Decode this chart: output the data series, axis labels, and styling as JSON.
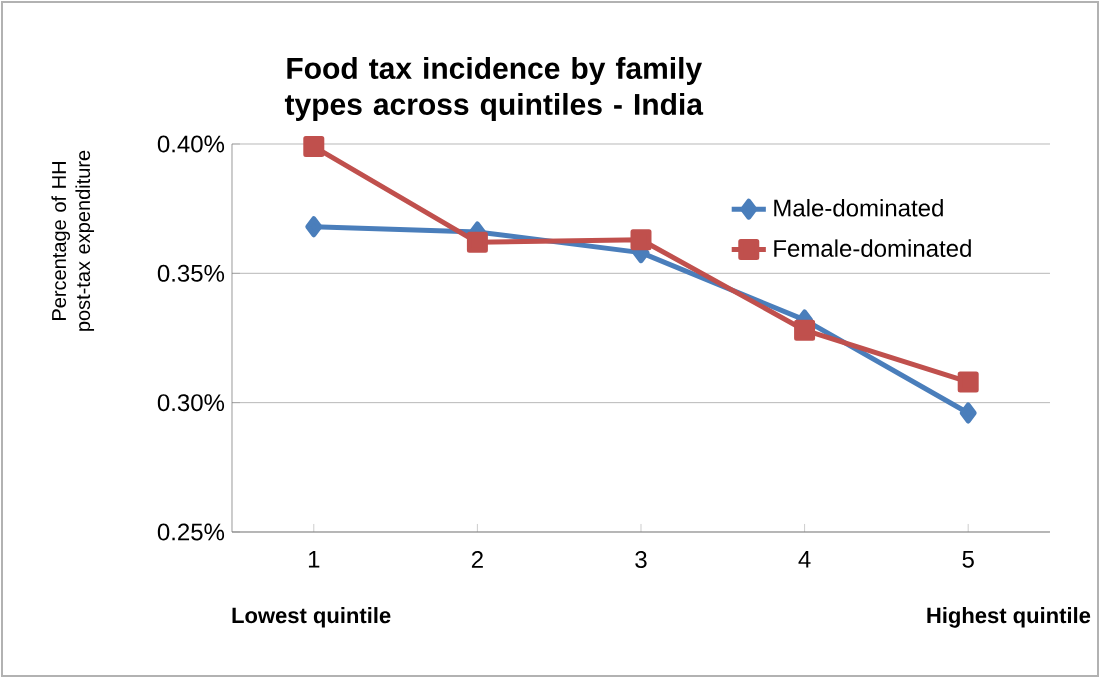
{
  "chart_data": {
    "type": "line",
    "title": "Food tax incidence by family types across quintiles - India",
    "ylabel": "Percentage of HH post-tax expenditure",
    "categories": [
      "1",
      "2",
      "3",
      "4",
      "5"
    ],
    "series": [
      {
        "name": "Male-dominated",
        "color": "#4a7ebb",
        "marker": "diamond",
        "values": [
          0.368,
          0.366,
          0.358,
          0.332,
          0.296
        ]
      },
      {
        "name": "Female-dominated",
        "color": "#c0504d",
        "marker": "square",
        "values": [
          0.399,
          0.362,
          0.363,
          0.328,
          0.308
        ]
      }
    ],
    "ylim": [
      0.25,
      0.4
    ],
    "yticks": [
      {
        "value": 0.25,
        "label": "0.25%"
      },
      {
        "value": 0.3,
        "label": "0.30%"
      },
      {
        "value": 0.35,
        "label": "0.35%"
      },
      {
        "value": 0.4,
        "label": "0.40%"
      }
    ],
    "grid": "y",
    "legend": "right",
    "line_style": "solid",
    "annotations": [
      "Lowest quintile",
      "Highest quintile"
    ]
  }
}
